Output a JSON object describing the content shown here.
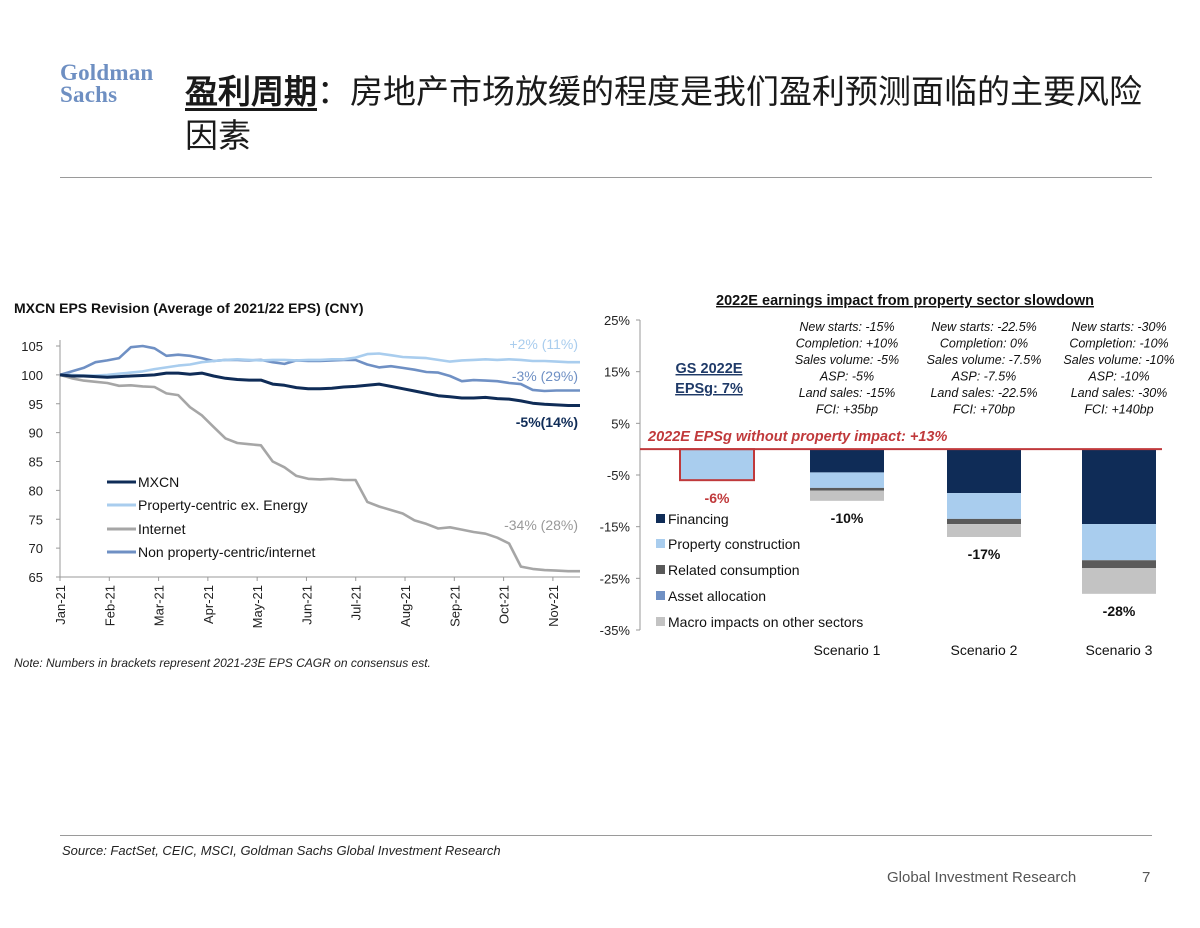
{
  "logo": {
    "line1": "Goldman",
    "line2": "Sachs"
  },
  "header": {
    "title_highlight": "盈利周期",
    "title_colon": "：",
    "title_rest": "房地产市场放缓的程度是我们盈利预测面临的主要风险因素"
  },
  "source": "Source: FactSet, CEIC, MSCI, Goldman Sachs Global Investment Research",
  "footer": {
    "text": "Global Investment Research",
    "page": "7"
  },
  "colors": {
    "mxcn": "#0f2c57",
    "property_centric": "#a9cdee",
    "internet": "#a6a6a6",
    "non_property": "#6f90c4",
    "financing": "#0f2c57",
    "property_construction": "#a9cdee",
    "related_consumption": "#5a5a5a",
    "asset_allocation": "#6f90c4",
    "macro": "#c3c3c3",
    "red": "#c0393b"
  },
  "chart_data": [
    {
      "type": "line",
      "title": "MXCN EPS Revision (Average of 2021/22 EPS) (CNY)",
      "note": "Note: Numbers in brackets represent 2021-23E EPS CAGR on consensus est.",
      "x_tick_labels": [
        "Jan-21",
        "Feb-21",
        "Mar-21",
        "Apr-21",
        "May-21",
        "Jun-21",
        "Jul-21",
        "Aug-21",
        "Sep-21",
        "Oct-21",
        "Nov-21"
      ],
      "ylim": [
        65,
        105
      ],
      "y_ticks": [
        65,
        70,
        75,
        80,
        85,
        90,
        95,
        100,
        105
      ],
      "legend_position": "lower-left",
      "series": [
        {
          "name": "MXCN",
          "key": "mxcn",
          "values": [
            100,
            99.8,
            99.8,
            99.7,
            99.6,
            99.7,
            99.8,
            99.9,
            100,
            100.3,
            100.3,
            100.1,
            100.3,
            99.8,
            99.4,
            99.2,
            99.1,
            99.1,
            98.4,
            98.2,
            97.8,
            97.6,
            97.6,
            97.7,
            97.9,
            98,
            98.2,
            98.4,
            98,
            97.6,
            97.2,
            96.8,
            96.4,
            96.2,
            96,
            96,
            96.1,
            95.9,
            95.8,
            95.5,
            95.1,
            94.9,
            94.8,
            94.7,
            94.7
          ]
        },
        {
          "name": "Property-centric ex. Energy",
          "key": "property_centric",
          "values": [
            100,
            100,
            99.9,
            99.9,
            100,
            100.2,
            100.4,
            100.6,
            101,
            101.3,
            101.6,
            101.8,
            102.2,
            102.4,
            102.6,
            102.7,
            102.6,
            102.5,
            102.6,
            102.6,
            102.5,
            102.6,
            102.6,
            102.7,
            102.7,
            103,
            103.6,
            103.7,
            103.4,
            103.1,
            103,
            102.9,
            102.6,
            102.3,
            102.5,
            102.6,
            102.7,
            102.6,
            102.7,
            102.6,
            102.4,
            102.4,
            102.3,
            102.2,
            102.2
          ]
        },
        {
          "name": "Internet",
          "key": "internet",
          "values": [
            100,
            99.4,
            99,
            98.8,
            98.6,
            98.1,
            98.2,
            98,
            97.9,
            96.8,
            96.5,
            94.4,
            93,
            91,
            89,
            88.2,
            88,
            87.8,
            85,
            84,
            82.5,
            82,
            81.9,
            82,
            81.8,
            81.8,
            78,
            77.2,
            76.6,
            76,
            74.8,
            74.2,
            73.4,
            73.6,
            73.2,
            72.8,
            72.5,
            71.8,
            70.8,
            66.8,
            66.4,
            66.2,
            66.1,
            66,
            66
          ]
        },
        {
          "name": "Non property-centric/internet",
          "key": "non_property",
          "values": [
            100,
            100.6,
            101.2,
            102.2,
            102.5,
            102.9,
            104.8,
            105,
            104.6,
            103.3,
            103.5,
            103.3,
            102.9,
            102.4,
            102.6,
            102.6,
            102.5,
            102.6,
            102.2,
            101.9,
            102.5,
            102.4,
            102.4,
            102.5,
            102.6,
            102.6,
            101.8,
            101.3,
            101.5,
            101.2,
            100.9,
            100.5,
            100.4,
            99.8,
            98.9,
            99.1,
            99,
            98.9,
            98.6,
            98.4,
            97.4,
            97.2,
            97.3,
            97.3,
            97.3
          ]
        }
      ],
      "annotations": [
        {
          "text": "+2% (11%)",
          "series": "property_centric"
        },
        {
          "text": "-3% (29%)",
          "series": "non_property"
        },
        {
          "text": "-5%(14%)",
          "series": "mxcn"
        },
        {
          "text": "-34% (28%)",
          "series": "internet"
        }
      ]
    },
    {
      "type": "bar",
      "stacked": true,
      "title": "2022E earnings impact from property sector slowdown",
      "ylim": [
        -35,
        25
      ],
      "y_ticks": [
        25,
        15,
        5,
        -5,
        -15,
        -25,
        -35
      ],
      "y_tick_labels": [
        "25%",
        "15%",
        "5%",
        "-5%",
        "-15%",
        "-25%",
        "-35%"
      ],
      "baseline_label": "2022E EPSg without property impact: +13%",
      "gs_label": [
        "GS 2022E",
        "EPSg: 7%"
      ],
      "gs_bar": {
        "value": -6,
        "label": "-6%"
      },
      "categories": [
        "Scenario 1",
        "Scenario 2",
        "Scenario 3"
      ],
      "series": [
        {
          "name": "Financing",
          "key": "financing",
          "values": [
            -4.5,
            -8.5,
            -14.5
          ]
        },
        {
          "name": "Property construction",
          "key": "property_construction",
          "values": [
            -3,
            -5,
            -7
          ]
        },
        {
          "name": "Related consumption",
          "key": "related_consumption",
          "values": [
            -0.5,
            -1,
            -1.5
          ]
        },
        {
          "name": "Asset allocation",
          "key": "asset_allocation",
          "values": [
            0,
            0,
            0
          ]
        },
        {
          "name": "Macro impacts on other sectors",
          "key": "macro",
          "values": [
            -2,
            -2.5,
            -5
          ]
        }
      ],
      "totals": [
        "-10%",
        "-17%",
        "-28%"
      ],
      "scenario_assumptions": [
        [
          "New starts: -15%",
          "Completion: +10%",
          "Sales volume: -5%",
          "ASP: -5%",
          "Land sales: -15%",
          "FCI: +35bp"
        ],
        [
          "New starts: -22.5%",
          "Completion: 0%",
          "Sales volume: -7.5%",
          "ASP: -7.5%",
          "Land sales: -22.5%",
          "FCI: +70bp"
        ],
        [
          "New starts: -30%",
          "Completion: -10%",
          "Sales volume: -10%",
          "ASP: -10%",
          "Land sales: -30%",
          "FCI: +140bp"
        ]
      ]
    }
  ]
}
